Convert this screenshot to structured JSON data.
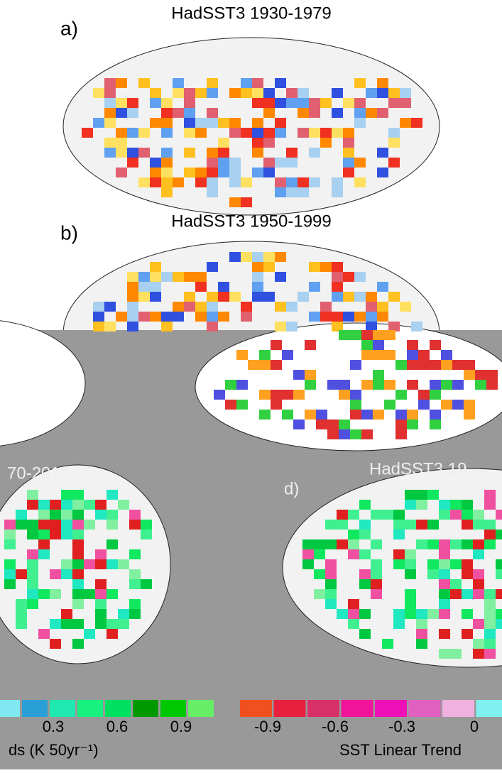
{
  "panels": [
    {
      "label": "a)",
      "title": "HadSST3 1930-1979"
    },
    {
      "label": "b)",
      "title": "HadSST3 1950-1999"
    },
    {
      "title": "70-2018"
    },
    {
      "label": "d)",
      "title": "HadSST3 19"
    }
  ],
  "colorbar_left": {
    "ticks": [
      "0.3",
      "0.6",
      "0.9"
    ],
    "unit": "ds (K 50yr⁻¹)"
  },
  "colorbar_right": {
    "ticks": [
      "-0.9",
      "-0.6",
      "-0.3",
      "0"
    ],
    "unit": "SST Linear Trend"
  }
}
